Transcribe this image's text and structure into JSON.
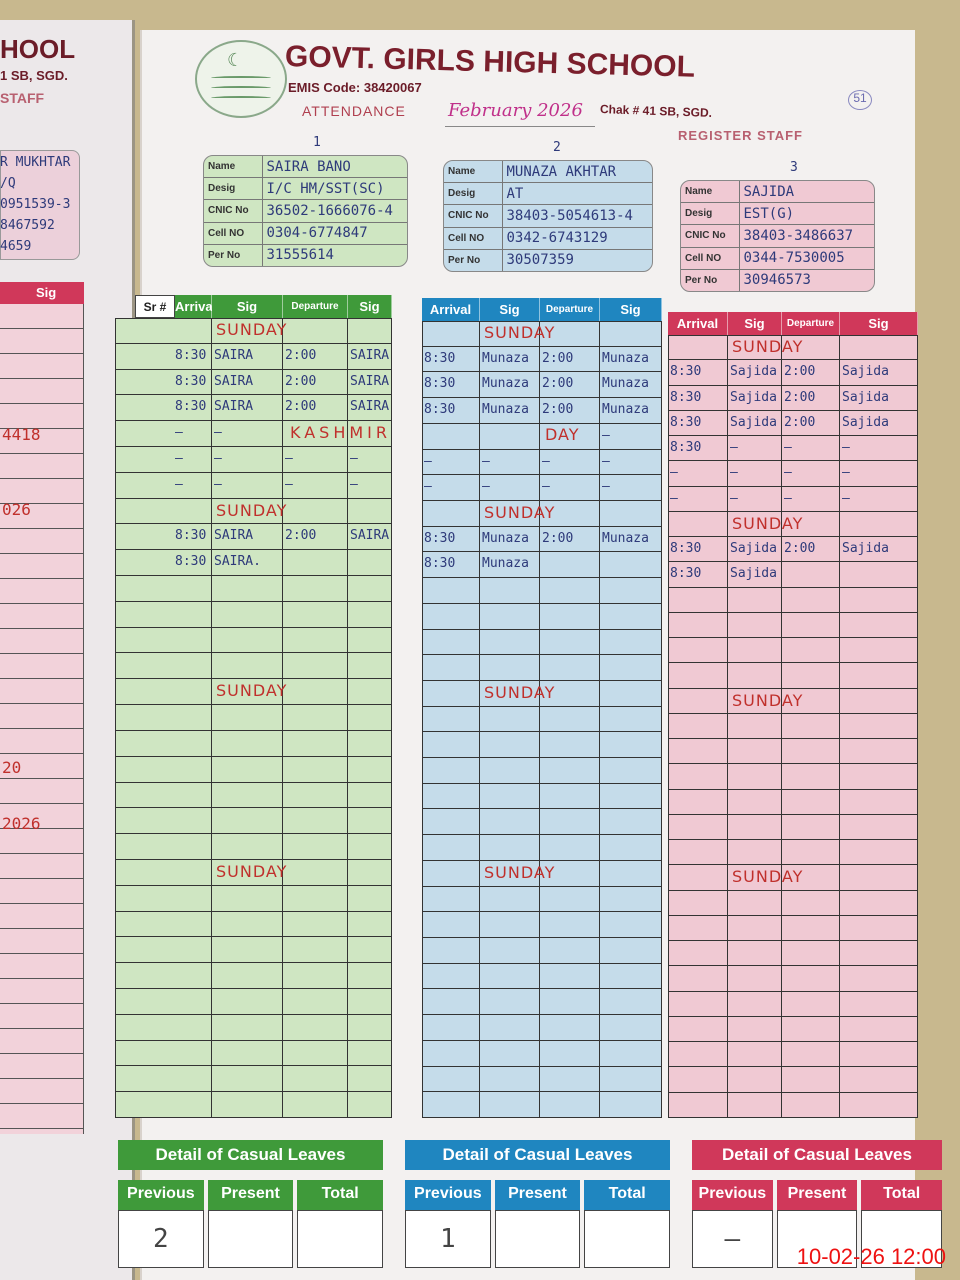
{
  "left_page": {
    "title_fragment": "HOOL",
    "address_fragment": "1 SB, SGD.",
    "staff_fragment": "STAFF",
    "info_lines": [
      "R MUKHTAR",
      "/Q",
      "0951539-3",
      "8467592",
      "4659"
    ],
    "sig_label": "Sig",
    "margin_notes": [
      "4418",
      "026",
      "20",
      "2026"
    ]
  },
  "header": {
    "school": "GOVT. GIRLS HIGH SCHOOL",
    "emis": "EMIS Code: 38420067",
    "address": "Chak # 41 SB, SGD.",
    "attendance_label": "ATTENDANCE",
    "month": "February 2026",
    "register": "REGISTER STAFF",
    "page_no": "51"
  },
  "info_labels": [
    "Name",
    "Desig",
    "CNIC No",
    "Cell NO",
    "Per No"
  ],
  "columns": {
    "sr": "Sr #",
    "arrival": "Arrival",
    "sig": "Sig",
    "departure": "Departure"
  },
  "staff": [
    {
      "number": "1",
      "color": "#3f9a3a",
      "tint": "#cfe6c2",
      "info": [
        "SAIRA BANO",
        "I/C HM/SST(SC)",
        "36502-1666076-4",
        "0304-6774847",
        "31555614"
      ],
      "rows": {
        "2": [
          "8:30",
          "SAIRA",
          "2:00",
          "SAIRA"
        ],
        "3": [
          "8:30",
          "SAIRA",
          "2:00",
          "SAIRA"
        ],
        "4": [
          "8:30",
          "SAIRA",
          "2:00",
          "SAIRA"
        ],
        "5": [
          "–",
          "–",
          "",
          ""
        ],
        "6": [
          "–",
          "–",
          "–",
          "–"
        ],
        "7": [
          "–",
          "–",
          "–",
          "–"
        ],
        "9": [
          "8:30",
          "SAIRA",
          "2:00",
          "SAIRA"
        ],
        "10": [
          "8:30",
          "SAIRA.",
          "",
          ""
        ]
      },
      "leaves": {
        "previous": "2",
        "present": "",
        "total": ""
      }
    },
    {
      "number": "2",
      "color": "#1f86c0",
      "tint": "#c5dcea",
      "info": [
        "MUNAZA AKHTAR",
        "AT",
        "38403-5054613-4",
        "0342-6743129",
        "30507359"
      ],
      "rows": {
        "2": [
          "8:30",
          "Munaza",
          "2:00",
          "Munaza"
        ],
        "3": [
          "8:30",
          "Munaza",
          "2:00",
          "Munaza"
        ],
        "4": [
          "8:30",
          "Munaza",
          "2:00",
          "Munaza"
        ],
        "5": [
          "",
          "",
          "",
          "–"
        ],
        "6": [
          "–",
          "–",
          "–",
          "–"
        ],
        "7": [
          "–",
          "–",
          "–",
          "–"
        ],
        "9": [
          "8:30",
          "Munaza",
          "2:00",
          "Munaza"
        ],
        "10": [
          "8:30",
          "Munaza",
          "",
          ""
        ]
      },
      "leaves": {
        "previous": "1",
        "present": "",
        "total": ""
      }
    },
    {
      "number": "3",
      "color": "#d0385a",
      "tint": "#f0c9d3",
      "info": [
        "SAJIDA",
        "EST(G)",
        "38403-3486637",
        "0344-7530005",
        "30946573"
      ],
      "rows": {
        "2": [
          "8:30",
          "Sajida",
          "2:00",
          "Sajida"
        ],
        "3": [
          "8:30",
          "Sajida",
          "2:00",
          "Sajida"
        ],
        "4": [
          "8:30",
          "Sajida",
          "2:00",
          "Sajida"
        ],
        "5": [
          "8:30",
          "–",
          "–",
          "–"
        ],
        "6": [
          "–",
          "–",
          "–",
          "–"
        ],
        "7": [
          "–",
          "–",
          "–",
          "–"
        ],
        "9": [
          "8:30",
          "Sajida",
          "2:00",
          "Sajida"
        ],
        "10": [
          "8:30",
          "Sajida",
          "",
          ""
        ]
      },
      "leaves": {
        "previous": "–",
        "present": "",
        "total": ""
      }
    }
  ],
  "notes": {
    "sunday": "SUNDAY",
    "kashmir": "KASHMIR",
    "day": "DAY",
    "sunday_days": [
      1,
      8,
      15,
      22
    ]
  },
  "casual_leaves": {
    "title": "Detail of Casual Leaves",
    "previous": "Previous",
    "present": "Present",
    "total": "Total"
  },
  "timestamp": "10-02-26  12:00"
}
